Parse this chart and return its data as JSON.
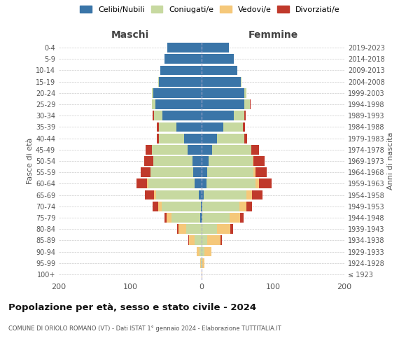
{
  "age_groups": [
    "100+",
    "95-99",
    "90-94",
    "85-89",
    "80-84",
    "75-79",
    "70-74",
    "65-69",
    "60-64",
    "55-59",
    "50-54",
    "45-49",
    "40-44",
    "35-39",
    "30-34",
    "25-29",
    "20-24",
    "15-19",
    "10-14",
    "5-9",
    "0-4"
  ],
  "birth_years": [
    "≤ 1923",
    "1924-1928",
    "1929-1933",
    "1934-1938",
    "1939-1943",
    "1944-1948",
    "1949-1953",
    "1954-1958",
    "1959-1963",
    "1964-1968",
    "1969-1973",
    "1974-1978",
    "1979-1983",
    "1984-1988",
    "1989-1993",
    "1994-1998",
    "1999-2003",
    "2004-2008",
    "2009-2013",
    "2014-2018",
    "2019-2023"
  ],
  "males": {
    "celibe": [
      0,
      0,
      0,
      0,
      0,
      2,
      1,
      4,
      10,
      12,
      13,
      20,
      25,
      35,
      55,
      65,
      68,
      60,
      58,
      52,
      48
    ],
    "coniugato": [
      0,
      1,
      3,
      10,
      22,
      40,
      55,
      60,
      65,
      60,
      55,
      50,
      35,
      25,
      12,
      5,
      2,
      1,
      0,
      0,
      0
    ],
    "vedovo": [
      0,
      1,
      4,
      8,
      10,
      7,
      5,
      3,
      1,
      0,
      0,
      0,
      0,
      0,
      0,
      0,
      0,
      0,
      0,
      0,
      0
    ],
    "divorziato": [
      0,
      0,
      0,
      1,
      2,
      3,
      8,
      12,
      15,
      13,
      12,
      8,
      3,
      3,
      2,
      0,
      0,
      0,
      0,
      0,
      0
    ]
  },
  "females": {
    "nubile": [
      0,
      0,
      0,
      0,
      0,
      1,
      1,
      3,
      7,
      8,
      10,
      15,
      22,
      30,
      45,
      60,
      60,
      55,
      50,
      45,
      38
    ],
    "coniugata": [
      0,
      1,
      4,
      8,
      22,
      38,
      52,
      60,
      68,
      65,
      62,
      55,
      38,
      28,
      15,
      8,
      3,
      1,
      0,
      0,
      0
    ],
    "vedova": [
      1,
      3,
      10,
      18,
      18,
      15,
      10,
      8,
      5,
      2,
      1,
      0,
      0,
      0,
      0,
      0,
      0,
      0,
      0,
      0,
      0
    ],
    "divorziata": [
      0,
      0,
      0,
      2,
      4,
      5,
      8,
      14,
      18,
      16,
      15,
      10,
      4,
      3,
      2,
      1,
      0,
      0,
      0,
      0,
      0
    ]
  },
  "colors": {
    "celibe": "#3a75a8",
    "coniugato": "#c7d9a0",
    "vedovo": "#f5c87a",
    "divorziato": "#c0392b"
  },
  "xlim": 200,
  "title": "Popolazione per età, sesso e stato civile - 2024",
  "subtitle": "COMUNE DI ORIOLO ROMANO (VT) - Dati ISTAT 1° gennaio 2024 - Elaborazione TUTTITALIA.IT",
  "ylabel_left": "Fasce di età",
  "ylabel_right": "Anni di nascita",
  "xlabel_left": "Maschi",
  "xlabel_right": "Femmine",
  "bg_color": "#ffffff",
  "grid_color": "#cccccc",
  "legend_labels": [
    "Celibi/Nubili",
    "Coniugati/e",
    "Vedovi/e",
    "Divorziati/e"
  ]
}
